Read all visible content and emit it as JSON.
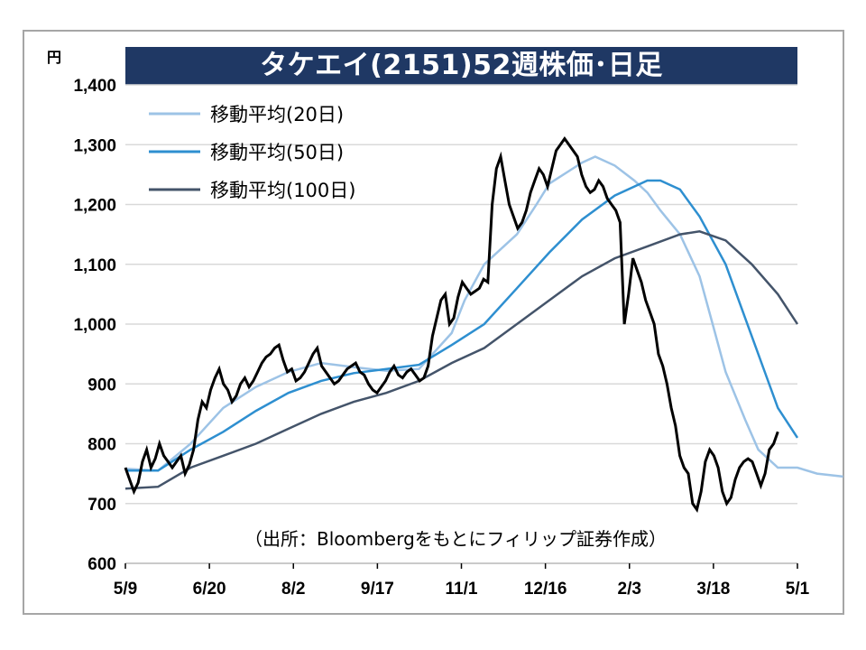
{
  "chart_data": {
    "type": "line",
    "title": "タケエイ(2151)52週株価･日足",
    "unit": "円",
    "source_note": "（出所：Bloombergをもとにフィリップ証券作成）",
    "ylim": [
      600,
      1400
    ],
    "y_ticks": [
      "1,400",
      "1,300",
      "1,200",
      "1,100",
      "1,000",
      "900",
      "800",
      "700",
      "600"
    ],
    "y_tick_values": [
      1400,
      1300,
      1200,
      1100,
      1000,
      900,
      800,
      700,
      600
    ],
    "x_ticks": [
      "5/9",
      "6/20",
      "8/2",
      "9/17",
      "11/1",
      "12/16",
      "2/3",
      "3/18",
      "5/1"
    ],
    "grid": "horizontal",
    "legend": {
      "placement": "top-left"
    },
    "price": {
      "color": "#000000",
      "values": [
        760,
        740,
        720,
        735,
        770,
        790,
        760,
        775,
        800,
        780,
        770,
        760,
        770,
        780,
        750,
        765,
        790,
        840,
        870,
        860,
        890,
        910,
        925,
        900,
        890,
        870,
        880,
        900,
        910,
        895,
        905,
        920,
        935,
        945,
        950,
        960,
        965,
        940,
        920,
        925,
        905,
        910,
        920,
        935,
        950,
        960,
        930,
        920,
        910,
        900,
        905,
        915,
        925,
        930,
        935,
        920,
        915,
        900,
        890,
        885,
        895,
        905,
        920,
        930,
        915,
        910,
        920,
        925,
        915,
        905,
        910,
        930,
        980,
        1010,
        1040,
        1050,
        1000,
        1010,
        1045,
        1070,
        1060,
        1050,
        1055,
        1060,
        1075,
        1070,
        1200,
        1260,
        1280,
        1240,
        1200,
        1180,
        1160,
        1170,
        1190,
        1220,
        1240,
        1260,
        1250,
        1230,
        1260,
        1290,
        1300,
        1310,
        1300,
        1290,
        1280,
        1250,
        1230,
        1220,
        1225,
        1240,
        1230,
        1210,
        1200,
        1190,
        1170,
        1000,
        1050,
        1110,
        1090,
        1070,
        1040,
        1020,
        1000,
        950,
        930,
        900,
        860,
        830,
        780,
        760,
        750,
        700,
        690,
        720,
        770,
        790,
        780,
        760,
        720,
        700,
        710,
        740,
        760,
        770,
        775,
        770,
        750,
        730,
        750,
        790,
        800,
        820
      ],
      "x_range": [
        0,
        1
      ]
    },
    "series": [
      {
        "name": "移動平均(20日)",
        "color": "#9dc3e6",
        "points": [
          [
            0.0,
            758
          ],
          [
            0.05,
            755
          ],
          [
            0.1,
            800
          ],
          [
            0.15,
            860
          ],
          [
            0.2,
            895
          ],
          [
            0.25,
            920
          ],
          [
            0.3,
            935
          ],
          [
            0.35,
            928
          ],
          [
            0.4,
            922
          ],
          [
            0.45,
            925
          ],
          [
            0.5,
            985
          ],
          [
            0.52,
            1040
          ],
          [
            0.55,
            1100
          ],
          [
            0.6,
            1150
          ],
          [
            0.63,
            1200
          ],
          [
            0.65,
            1235
          ],
          [
            0.7,
            1270
          ],
          [
            0.72,
            1280
          ],
          [
            0.75,
            1265
          ],
          [
            0.78,
            1240
          ],
          [
            0.8,
            1220
          ],
          [
            0.82,
            1190
          ],
          [
            0.85,
            1150
          ],
          [
            0.88,
            1080
          ],
          [
            0.9,
            1000
          ],
          [
            0.92,
            920
          ],
          [
            0.95,
            840
          ],
          [
            0.97,
            790
          ],
          [
            1.0,
            760
          ],
          [
            1.03,
            760
          ],
          [
            1.06,
            750
          ],
          [
            1.1,
            745
          ]
        ],
        "x_note": "fractional position along the dated axis"
      },
      {
        "name": "移動平均(50日)",
        "color": "#2e8fd0",
        "points": [
          [
            0.0,
            755
          ],
          [
            0.05,
            755
          ],
          [
            0.1,
            790
          ],
          [
            0.15,
            820
          ],
          [
            0.2,
            855
          ],
          [
            0.25,
            885
          ],
          [
            0.3,
            905
          ],
          [
            0.35,
            918
          ],
          [
            0.4,
            925
          ],
          [
            0.45,
            932
          ],
          [
            0.5,
            965
          ],
          [
            0.55,
            1000
          ],
          [
            0.6,
            1060
          ],
          [
            0.65,
            1120
          ],
          [
            0.7,
            1175
          ],
          [
            0.75,
            1215
          ],
          [
            0.8,
            1240
          ],
          [
            0.82,
            1240
          ],
          [
            0.85,
            1225
          ],
          [
            0.88,
            1180
          ],
          [
            0.92,
            1100
          ],
          [
            0.95,
            1010
          ],
          [
            0.98,
            920
          ],
          [
            1.0,
            860
          ],
          [
            1.03,
            810
          ]
        ]
      },
      {
        "name": "移動平均(100日)",
        "color": "#44546a",
        "points": [
          [
            0.0,
            725
          ],
          [
            0.05,
            728
          ],
          [
            0.1,
            760
          ],
          [
            0.15,
            780
          ],
          [
            0.2,
            800
          ],
          [
            0.25,
            825
          ],
          [
            0.3,
            850
          ],
          [
            0.35,
            870
          ],
          [
            0.4,
            885
          ],
          [
            0.45,
            905
          ],
          [
            0.5,
            935
          ],
          [
            0.55,
            960
          ],
          [
            0.6,
            1000
          ],
          [
            0.65,
            1040
          ],
          [
            0.7,
            1080
          ],
          [
            0.75,
            1110
          ],
          [
            0.8,
            1130
          ],
          [
            0.85,
            1150
          ],
          [
            0.88,
            1155
          ],
          [
            0.92,
            1140
          ],
          [
            0.96,
            1100
          ],
          [
            1.0,
            1050
          ],
          [
            1.03,
            1000
          ]
        ]
      }
    ]
  }
}
